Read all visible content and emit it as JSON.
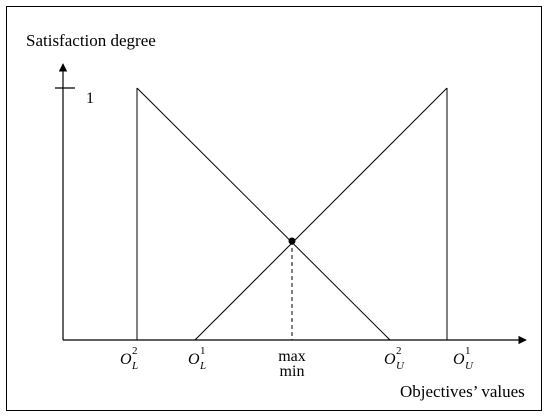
{
  "y_axis_title": "Satisfaction degree",
  "x_axis_title": "Objectives’ values",
  "y_tick_one": "1",
  "x_ticks": {
    "oL2": {
      "base": "O",
      "sub": "L",
      "sup": "2"
    },
    "oL1": {
      "base": "O",
      "sub": "L",
      "sup": "1"
    },
    "maxmin": {
      "top": "max",
      "bottom": "min"
    },
    "oU2": {
      "base": "O",
      "sub": "U",
      "sup": "2"
    },
    "oU1": {
      "base": "O",
      "sub": "U",
      "sup": "1"
    }
  },
  "colors": {
    "line": "#000000",
    "background": "#ffffff"
  }
}
